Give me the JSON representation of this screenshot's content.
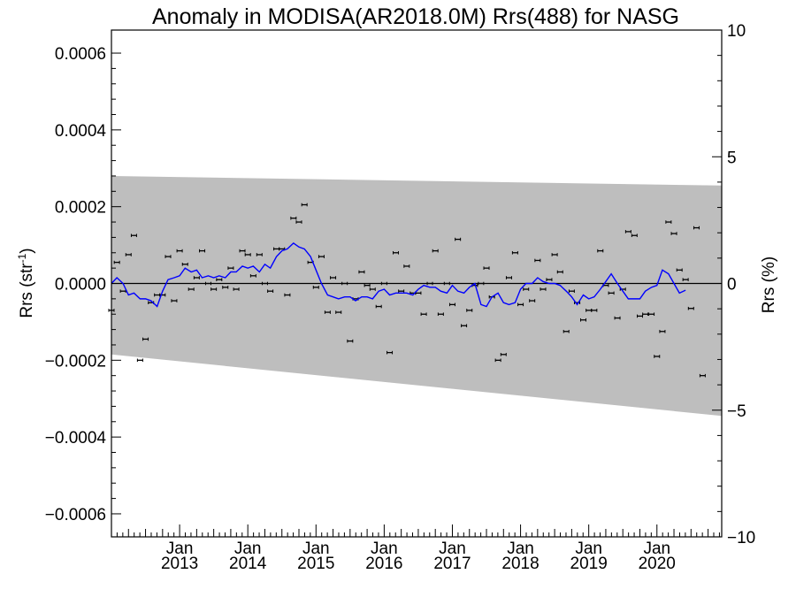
{
  "chart_data": {
    "type": "scatter",
    "title": "Anomaly in MODISA(AR2018.0M) Rrs(488) for NASG",
    "ylabel": "Rrs (str",
    "ylabel_unit_sup": "-1",
    "ylabel_close": ")",
    "y2label": "Rrs (%)",
    "xlabel": "",
    "ylim": [
      -0.00066,
      0.00066
    ],
    "y2lim": [
      -10,
      10
    ],
    "xlim": [
      2012.0,
      2020.95
    ],
    "y_ticks": [
      {
        "value": 0.0006,
        "label": "0.0006"
      },
      {
        "value": 0.0004,
        "label": "0.0004"
      },
      {
        "value": 0.0002,
        "label": "0.0002"
      },
      {
        "value": 0.0,
        "label": "0.0000"
      },
      {
        "value": -0.0002,
        "label": "−0.0002"
      },
      {
        "value": -0.0004,
        "label": "−0.0004"
      },
      {
        "value": -0.0006,
        "label": "−0.0006"
      }
    ],
    "y2_ticks": [
      {
        "value": 10,
        "label": "10"
      },
      {
        "value": 5,
        "label": "5"
      },
      {
        "value": 0,
        "label": "0"
      },
      {
        "value": -5,
        "label": "−5"
      },
      {
        "value": -10,
        "label": "−10"
      }
    ],
    "x_ticks": [
      {
        "value": 2013.0,
        "month": "Jan",
        "year": "2013"
      },
      {
        "value": 2014.0,
        "month": "Jan",
        "year": "2014"
      },
      {
        "value": 2015.0,
        "month": "Jan",
        "year": "2015"
      },
      {
        "value": 2016.0,
        "month": "Jan",
        "year": "2016"
      },
      {
        "value": 2017.0,
        "month": "Jan",
        "year": "2017"
      },
      {
        "value": 2018.0,
        "month": "Jan",
        "year": "2018"
      },
      {
        "value": 2019.0,
        "month": "Jan",
        "year": "2019"
      },
      {
        "value": 2020.0,
        "month": "Jan",
        "year": "2020"
      }
    ],
    "band": {
      "color": "#bebebe",
      "upper": [
        [
          2012.0,
          0.00028
        ],
        [
          2020.95,
          0.000255
        ]
      ],
      "lower": [
        [
          2012.0,
          -0.000185
        ],
        [
          2020.95,
          -0.000345
        ]
      ]
    },
    "zero_line_color": "#000000",
    "points_color": "#000000",
    "line_color": "#0000ff",
    "points": [
      [
        2012.0,
        -7e-05
      ],
      [
        2012.08,
        5.5e-05
      ],
      [
        2012.17,
        -2e-05
      ],
      [
        2012.25,
        7.5e-05
      ],
      [
        2012.33,
        0.000125
      ],
      [
        2012.42,
        -0.0002
      ],
      [
        2012.5,
        -0.000145
      ],
      [
        2012.58,
        -5e-05
      ],
      [
        2012.67,
        -3e-05
      ],
      [
        2012.75,
        -3e-05
      ],
      [
        2012.83,
        7e-05
      ],
      [
        2012.92,
        -4.5e-05
      ],
      [
        2013.0,
        8.5e-05
      ],
      [
        2013.08,
        5e-05
      ],
      [
        2013.17,
        -1.5e-05
      ],
      [
        2013.25,
        1.5e-05
      ],
      [
        2013.33,
        8.5e-05
      ],
      [
        2013.42,
        0.0
      ],
      [
        2013.5,
        -1.5e-05
      ],
      [
        2013.58,
        1e-05
      ],
      [
        2013.67,
        -1e-05
      ],
      [
        2013.75,
        4e-05
      ],
      [
        2013.83,
        -1.5e-05
      ],
      [
        2013.92,
        8.5e-05
      ],
      [
        2014.0,
        7.5e-05
      ],
      [
        2014.08,
        2e-05
      ],
      [
        2014.17,
        7.5e-05
      ],
      [
        2014.25,
        0.0
      ],
      [
        2014.33,
        -2e-05
      ],
      [
        2014.42,
        9e-05
      ],
      [
        2014.5,
        9e-05
      ],
      [
        2014.58,
        -3e-05
      ],
      [
        2014.67,
        0.00017
      ],
      [
        2014.75,
        0.00016
      ],
      [
        2014.83,
        0.000205
      ],
      [
        2014.92,
        5.5e-05
      ],
      [
        2015.0,
        -1e-05
      ],
      [
        2015.08,
        7e-05
      ],
      [
        2015.17,
        -7.5e-05
      ],
      [
        2015.25,
        1.5e-05
      ],
      [
        2015.33,
        -7.5e-05
      ],
      [
        2015.42,
        0.0
      ],
      [
        2015.5,
        -0.00015
      ],
      [
        2015.58,
        -4e-05
      ],
      [
        2015.67,
        3e-05
      ],
      [
        2015.75,
        -5e-06
      ],
      [
        2015.83,
        -1.5e-05
      ],
      [
        2015.92,
        -6e-05
      ],
      [
        2016.0,
        0.0
      ],
      [
        2016.08,
        -0.00018
      ],
      [
        2016.17,
        8e-05
      ],
      [
        2016.25,
        -2e-05
      ],
      [
        2016.33,
        4.5e-05
      ],
      [
        2016.42,
        -2.5e-05
      ],
      [
        2016.5,
        -2.5e-05
      ],
      [
        2016.58,
        -8e-05
      ],
      [
        2016.67,
        0.0
      ],
      [
        2016.75,
        8.5e-05
      ],
      [
        2016.83,
        -8e-05
      ],
      [
        2016.92,
        0.0
      ],
      [
        2017.0,
        -5.5e-05
      ],
      [
        2017.08,
        0.000115
      ],
      [
        2017.17,
        -0.00011
      ],
      [
        2017.25,
        -7e-05
      ],
      [
        2017.33,
        -5e-06
      ],
      [
        2017.42,
        0.0
      ],
      [
        2017.5,
        4e-05
      ],
      [
        2017.58,
        -3.5e-05
      ],
      [
        2017.67,
        -0.0002
      ],
      [
        2017.75,
        -0.000185
      ],
      [
        2017.83,
        1.5e-05
      ],
      [
        2017.92,
        8e-05
      ],
      [
        2018.0,
        -5.5e-05
      ],
      [
        2018.08,
        -1.5e-05
      ],
      [
        2018.17,
        -4.5e-05
      ],
      [
        2018.25,
        6e-05
      ],
      [
        2018.33,
        -1.5e-05
      ],
      [
        2018.42,
        1e-05
      ],
      [
        2018.5,
        7.5e-05
      ],
      [
        2018.58,
        3e-05
      ],
      [
        2018.67,
        -0.000125
      ],
      [
        2018.75,
        -2e-05
      ],
      [
        2018.83,
        -5e-05
      ],
      [
        2018.92,
        -9.5e-05
      ],
      [
        2019.0,
        -7e-05
      ],
      [
        2019.08,
        -7e-05
      ],
      [
        2019.17,
        8.5e-05
      ],
      [
        2019.25,
        -5e-06
      ],
      [
        2019.33,
        -2.5e-05
      ],
      [
        2019.42,
        -9e-05
      ],
      [
        2019.5,
        -1.5e-05
      ],
      [
        2019.58,
        0.000135
      ],
      [
        2019.67,
        0.000125
      ],
      [
        2019.75,
        -8.5e-05
      ],
      [
        2019.83,
        -8e-05
      ],
      [
        2019.92,
        -8e-05
      ],
      [
        2020.0,
        -0.00019
      ],
      [
        2020.08,
        -0.000125
      ],
      [
        2020.17,
        0.00016
      ],
      [
        2020.25,
        0.00013
      ],
      [
        2020.33,
        3.5e-05
      ],
      [
        2020.42,
        1e-05
      ],
      [
        2020.5,
        -6.5e-05
      ],
      [
        2020.58,
        0.000145
      ],
      [
        2020.67,
        -0.00024
      ]
    ],
    "smoothed": [
      [
        2012.0,
        0.0
      ],
      [
        2012.08,
        1.5e-05
      ],
      [
        2012.17,
        -0.0
      ],
      [
        2012.25,
        -3e-05
      ],
      [
        2012.33,
        -2.5e-05
      ],
      [
        2012.42,
        -4e-05
      ],
      [
        2012.5,
        -4e-05
      ],
      [
        2012.58,
        -4.5e-05
      ],
      [
        2012.67,
        -6e-05
      ],
      [
        2012.75,
        -2e-05
      ],
      [
        2012.83,
        1e-05
      ],
      [
        2012.92,
        1.5e-05
      ],
      [
        2013.0,
        2e-05
      ],
      [
        2013.08,
        4e-05
      ],
      [
        2013.17,
        3e-05
      ],
      [
        2013.25,
        3.5e-05
      ],
      [
        2013.33,
        1.5e-05
      ],
      [
        2013.42,
        2e-05
      ],
      [
        2013.5,
        1.5e-05
      ],
      [
        2013.58,
        2e-05
      ],
      [
        2013.67,
        1.5e-05
      ],
      [
        2013.75,
        3e-05
      ],
      [
        2013.83,
        3e-05
      ],
      [
        2013.92,
        4.5e-05
      ],
      [
        2014.0,
        4e-05
      ],
      [
        2014.08,
        4.5e-05
      ],
      [
        2014.17,
        3e-05
      ],
      [
        2014.25,
        5e-05
      ],
      [
        2014.33,
        4e-05
      ],
      [
        2014.42,
        7e-05
      ],
      [
        2014.5,
        8.5e-05
      ],
      [
        2014.58,
        9e-05
      ],
      [
        2014.67,
        0.000105
      ],
      [
        2014.75,
        9.5e-05
      ],
      [
        2014.83,
        9e-05
      ],
      [
        2014.92,
        7e-05
      ],
      [
        2015.0,
        3.5e-05
      ],
      [
        2015.08,
        -0.0
      ],
      [
        2015.17,
        -3e-05
      ],
      [
        2015.25,
        -3.5e-05
      ],
      [
        2015.33,
        -4e-05
      ],
      [
        2015.42,
        -3.5e-05
      ],
      [
        2015.5,
        -3.5e-05
      ],
      [
        2015.58,
        -4.5e-05
      ],
      [
        2015.67,
        -3.5e-05
      ],
      [
        2015.75,
        -3.5e-05
      ],
      [
        2015.83,
        -4e-05
      ],
      [
        2015.92,
        -2e-05
      ],
      [
        2016.0,
        -1.5e-05
      ],
      [
        2016.08,
        -3e-05
      ],
      [
        2016.17,
        -2.5e-05
      ],
      [
        2016.25,
        -2.5e-05
      ],
      [
        2016.33,
        -2.5e-05
      ],
      [
        2016.42,
        -3e-05
      ],
      [
        2016.5,
        -1.5e-05
      ],
      [
        2016.58,
        -5e-06
      ],
      [
        2016.67,
        -1e-05
      ],
      [
        2016.75,
        -1e-05
      ],
      [
        2016.83,
        -2e-05
      ],
      [
        2016.92,
        -2.5e-05
      ],
      [
        2017.0,
        -5e-06
      ],
      [
        2017.08,
        -2e-05
      ],
      [
        2017.17,
        -2.5e-05
      ],
      [
        2017.25,
        -1e-05
      ],
      [
        2017.33,
        -0.0
      ],
      [
        2017.42,
        -5.5e-05
      ],
      [
        2017.5,
        -6e-05
      ],
      [
        2017.58,
        -3.5e-05
      ],
      [
        2017.67,
        -2.5e-05
      ],
      [
        2017.75,
        -5e-05
      ],
      [
        2017.83,
        -5.5e-05
      ],
      [
        2017.92,
        -5e-05
      ],
      [
        2018.0,
        -1.5e-05
      ],
      [
        2018.08,
        0.0
      ],
      [
        2018.17,
        0.0
      ],
      [
        2018.25,
        1.5e-05
      ],
      [
        2018.33,
        5e-06
      ],
      [
        2018.42,
        -0.0
      ],
      [
        2018.5,
        0.0
      ],
      [
        2018.58,
        -5e-06
      ],
      [
        2018.67,
        -2e-05
      ],
      [
        2018.75,
        -3.5e-05
      ],
      [
        2018.83,
        -5.5e-05
      ],
      [
        2018.92,
        -3e-05
      ],
      [
        2019.0,
        -4e-05
      ],
      [
        2019.08,
        -3.5e-05
      ],
      [
        2019.17,
        -1.5e-05
      ],
      [
        2019.25,
        5e-06
      ],
      [
        2019.33,
        2.5e-05
      ],
      [
        2019.42,
        0.0
      ],
      [
        2019.5,
        -2e-05
      ],
      [
        2019.58,
        -4e-05
      ],
      [
        2019.67,
        -4e-05
      ],
      [
        2019.75,
        -4e-05
      ],
      [
        2019.83,
        -2e-05
      ],
      [
        2019.92,
        -1e-05
      ],
      [
        2020.0,
        -5e-06
      ],
      [
        2020.08,
        3.5e-05
      ],
      [
        2020.17,
        2.5e-05
      ],
      [
        2020.25,
        -0.0
      ],
      [
        2020.33,
        -2.5e-05
      ],
      [
        2020.42,
        -1.75e-05
      ]
    ]
  }
}
